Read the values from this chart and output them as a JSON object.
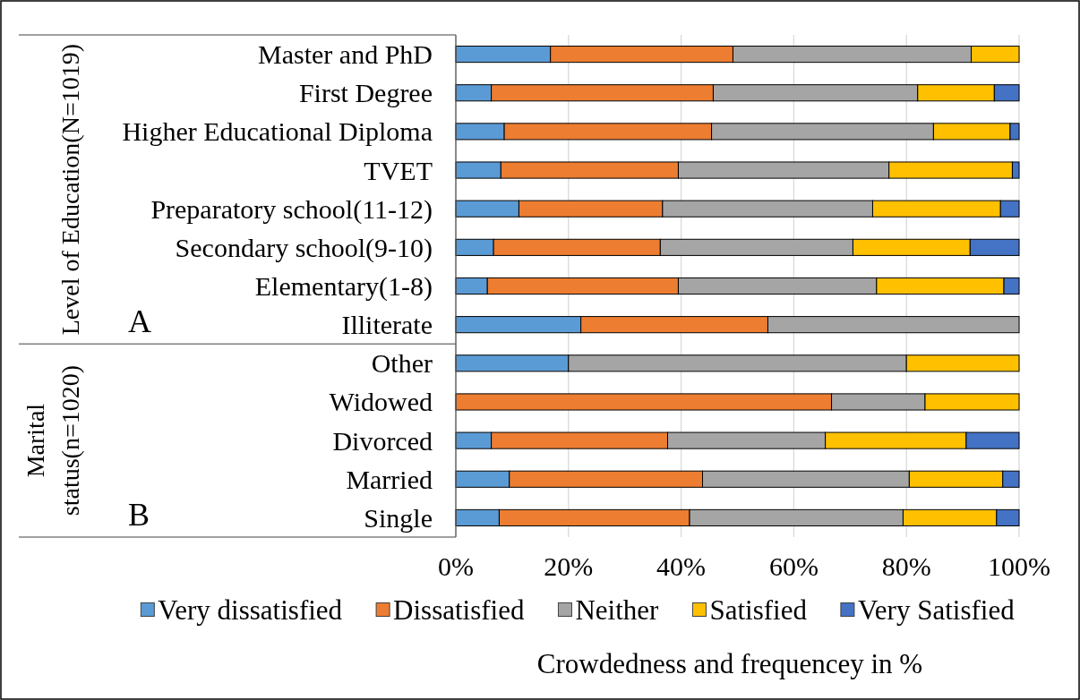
{
  "chart_data": {
    "type": "bar",
    "orientation": "horizontal",
    "stacked": true,
    "categories": [
      "Master and PhD",
      "First Degree",
      "Higher Educational Diploma",
      "TVET",
      "Preparatory school(11-12)",
      "Secondary school(9-10)",
      "Elementary(1-8)",
      "Illiterate",
      "Other",
      "Widowed",
      "Divorced",
      "Married",
      "Single"
    ],
    "series": [
      {
        "name": "Very dissatisfied",
        "color": "#5b9bd5",
        "values": [
          16.8,
          6.3,
          8.6,
          8.0,
          11.2,
          6.7,
          5.6,
          22.2,
          20,
          null,
          6.3,
          9.5,
          7.7
        ]
      },
      {
        "name": "Dissatisfied",
        "color": "#ed7d31",
        "values": [
          32.4,
          39.4,
          36.8,
          31.5,
          25.5,
          29.6,
          33.9,
          33.2,
          null,
          66.7,
          31.3,
          34.3,
          33.8
        ]
      },
      {
        "name": "Neither",
        "color": "#a5a5a5",
        "values": [
          42.3,
          36.3,
          39.4,
          37.4,
          37.3,
          34.2,
          35.2,
          44.6,
          60,
          16.6,
          28.0,
          36.7,
          37.9
        ]
      },
      {
        "name": "Satisfied",
        "color": "#ffc000",
        "values": [
          8.5,
          13.6,
          13.6,
          21.9,
          22.7,
          20.8,
          22.6,
          null,
          20,
          16.7,
          25.0,
          16.6,
          16.6
        ]
      },
      {
        "name": "Very Satisfied",
        "color": "#4472c4",
        "values": [
          null,
          4.4,
          1.6,
          1.2,
          3.3,
          8.7,
          2.7,
          null,
          null,
          null,
          9.4,
          2.9,
          4.0
        ]
      }
    ],
    "xlim": [
      0,
      100
    ],
    "xticks": [
      {
        "value": 0,
        "label": "0%"
      },
      {
        "value": 20,
        "label": "20%"
      },
      {
        "value": 40,
        "label": "40%"
      },
      {
        "value": 60,
        "label": "60%"
      },
      {
        "value": 80,
        "label": "80%"
      },
      {
        "value": 100,
        "label": "100%"
      }
    ],
    "xlabel": "Crowdedness and frequencey in %",
    "annotations": [
      "Level of Education(N=1019)",
      "Marital status(n=1020)",
      "A",
      "B"
    ],
    "grid": "x",
    "legend": "bottom"
  }
}
